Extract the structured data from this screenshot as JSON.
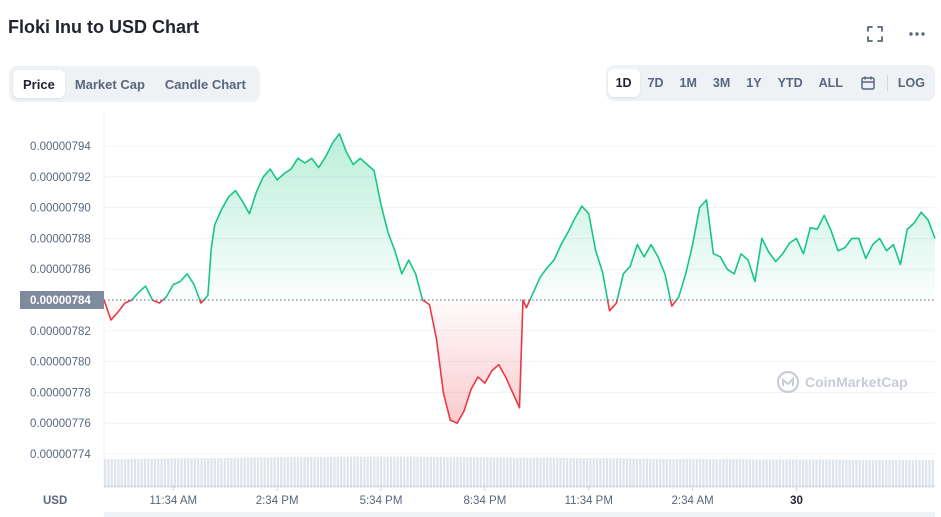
{
  "header": {
    "title": "Floki Inu to USD Chart"
  },
  "icons": {
    "fullscreen": "fullscreen-icon",
    "more": "more-icon",
    "calendar": "calendar-icon"
  },
  "tabs": [
    {
      "label": "Price",
      "active": true
    },
    {
      "label": "Market Cap",
      "active": false
    },
    {
      "label": "Candle Chart",
      "active": false
    }
  ],
  "ranges": [
    {
      "label": "1D",
      "active": true
    },
    {
      "label": "7D",
      "active": false
    },
    {
      "label": "1M",
      "active": false
    },
    {
      "label": "3M",
      "active": false
    },
    {
      "label": "1Y",
      "active": false
    },
    {
      "label": "YTD",
      "active": false
    },
    {
      "label": "ALL",
      "active": false
    }
  ],
  "scale_toggle": "LOG",
  "watermark": "CoinMarketCap",
  "colors": {
    "up": "#16c784",
    "down": "#ea3943",
    "accent": "#3861fb"
  },
  "chart_data": {
    "type": "line",
    "currency_label": "USD",
    "reference_value": 7.84e-06,
    "reference_label": "0.00000784",
    "ylim": [
      7.72e-06,
      7.96e-06
    ],
    "y_ticks": [
      7.74e-06,
      7.76e-06,
      7.78e-06,
      7.8e-06,
      7.82e-06,
      7.84e-06,
      7.86e-06,
      7.88e-06,
      7.9e-06,
      7.92e-06,
      7.94e-06
    ],
    "y_tick_labels": [
      "0.00000774",
      "0.00000776",
      "0.00000778",
      "0.00000780",
      "0.00000782",
      "0.00000784",
      "0.00000786",
      "0.00000788",
      "0.00000790",
      "0.00000792",
      "0.00000794"
    ],
    "x_range_hours": [
      0,
      24
    ],
    "x_ticks": [
      {
        "label": "11:34 AM",
        "h": 2.0,
        "bold": false
      },
      {
        "label": "2:34 PM",
        "h": 5.0,
        "bold": false
      },
      {
        "label": "5:34 PM",
        "h": 8.0,
        "bold": false
      },
      {
        "label": "8:34 PM",
        "h": 11.0,
        "bold": false
      },
      {
        "label": "11:34 PM",
        "h": 14.0,
        "bold": false
      },
      {
        "label": "2:34 AM",
        "h": 17.0,
        "bold": false
      },
      {
        "label": "30",
        "h": 20.0,
        "bold": true
      }
    ],
    "grid": true,
    "price_series": [
      [
        0.0,
        7.84
      ],
      [
        0.2,
        7.827
      ],
      [
        0.4,
        7.832
      ],
      [
        0.6,
        7.838
      ],
      [
        0.8,
        7.84
      ],
      [
        1.0,
        7.845
      ],
      [
        1.2,
        7.849
      ],
      [
        1.4,
        7.84
      ],
      [
        1.6,
        7.838
      ],
      [
        1.8,
        7.842
      ],
      [
        2.0,
        7.85
      ],
      [
        2.2,
        7.852
      ],
      [
        2.4,
        7.857
      ],
      [
        2.6,
        7.85
      ],
      [
        2.8,
        7.838
      ],
      [
        3.0,
        7.843
      ],
      [
        3.1,
        7.874
      ],
      [
        3.2,
        7.889
      ],
      [
        3.4,
        7.899
      ],
      [
        3.6,
        7.907
      ],
      [
        3.8,
        7.911
      ],
      [
        4.0,
        7.904
      ],
      [
        4.2,
        7.896
      ],
      [
        4.4,
        7.91
      ],
      [
        4.6,
        7.92
      ],
      [
        4.8,
        7.925
      ],
      [
        5.0,
        7.918
      ],
      [
        5.2,
        7.922
      ],
      [
        5.4,
        7.925
      ],
      [
        5.6,
        7.932
      ],
      [
        5.8,
        7.929
      ],
      [
        6.0,
        7.932
      ],
      [
        6.2,
        7.926
      ],
      [
        6.4,
        7.933
      ],
      [
        6.6,
        7.942
      ],
      [
        6.8,
        7.948
      ],
      [
        7.0,
        7.936
      ],
      [
        7.2,
        7.928
      ],
      [
        7.4,
        7.932
      ],
      [
        7.6,
        7.928
      ],
      [
        7.8,
        7.924
      ],
      [
        8.0,
        7.902
      ],
      [
        8.2,
        7.884
      ],
      [
        8.4,
        7.872
      ],
      [
        8.6,
        7.857
      ],
      [
        8.8,
        7.866
      ],
      [
        9.0,
        7.857
      ],
      [
        9.2,
        7.84
      ],
      [
        9.4,
        7.837
      ],
      [
        9.6,
        7.815
      ],
      [
        9.8,
        7.78
      ],
      [
        10.0,
        7.762
      ],
      [
        10.2,
        7.76
      ],
      [
        10.4,
        7.768
      ],
      [
        10.6,
        7.782
      ],
      [
        10.8,
        7.79
      ],
      [
        11.0,
        7.786
      ],
      [
        11.2,
        7.794
      ],
      [
        11.4,
        7.798
      ],
      [
        11.6,
        7.79
      ],
      [
        11.8,
        7.78
      ],
      [
        12.0,
        7.77
      ],
      [
        12.1,
        7.84
      ],
      [
        12.2,
        7.835
      ],
      [
        12.4,
        7.845
      ],
      [
        12.6,
        7.855
      ],
      [
        12.8,
        7.861
      ],
      [
        13.0,
        7.866
      ],
      [
        13.2,
        7.876
      ],
      [
        13.4,
        7.884
      ],
      [
        13.6,
        7.893
      ],
      [
        13.8,
        7.901
      ],
      [
        14.0,
        7.896
      ],
      [
        14.2,
        7.872
      ],
      [
        14.4,
        7.858
      ],
      [
        14.6,
        7.833
      ],
      [
        14.8,
        7.838
      ],
      [
        15.0,
        7.857
      ],
      [
        15.2,
        7.862
      ],
      [
        15.4,
        7.876
      ],
      [
        15.6,
        7.868
      ],
      [
        15.8,
        7.876
      ],
      [
        16.0,
        7.868
      ],
      [
        16.2,
        7.857
      ],
      [
        16.4,
        7.836
      ],
      [
        16.6,
        7.842
      ],
      [
        16.8,
        7.857
      ],
      [
        17.0,
        7.876
      ],
      [
        17.2,
        7.9
      ],
      [
        17.4,
        7.905
      ],
      [
        17.6,
        7.87
      ],
      [
        17.8,
        7.868
      ],
      [
        18.0,
        7.86
      ],
      [
        18.2,
        7.857
      ],
      [
        18.4,
        7.87
      ],
      [
        18.6,
        7.866
      ],
      [
        18.8,
        7.852
      ],
      [
        19.0,
        7.88
      ],
      [
        19.2,
        7.871
      ],
      [
        19.4,
        7.865
      ],
      [
        19.6,
        7.87
      ],
      [
        19.8,
        7.877
      ],
      [
        20.0,
        7.88
      ],
      [
        20.2,
        7.87
      ],
      [
        20.4,
        7.887
      ],
      [
        20.6,
        7.886
      ],
      [
        20.8,
        7.895
      ],
      [
        21.0,
        7.885
      ],
      [
        21.2,
        7.872
      ],
      [
        21.4,
        7.874
      ],
      [
        21.6,
        7.88
      ],
      [
        21.8,
        7.88
      ],
      [
        22.0,
        7.867
      ],
      [
        22.2,
        7.876
      ],
      [
        22.4,
        7.88
      ],
      [
        22.6,
        7.872
      ],
      [
        22.8,
        7.876
      ],
      [
        23.0,
        7.863
      ],
      [
        23.2,
        7.886
      ],
      [
        23.4,
        7.89
      ],
      [
        23.6,
        7.897
      ],
      [
        23.8,
        7.892
      ],
      [
        24.0,
        7.88
      ]
    ],
    "volume_series": [
      0.52,
      0.52,
      0.53,
      0.53,
      0.54,
      0.55,
      0.55,
      0.56,
      0.56,
      0.56,
      0.55,
      0.55,
      0.54,
      0.54,
      0.53,
      0.53,
      0.52,
      0.52,
      0.52,
      0.51,
      0.51,
      0.51,
      0.5,
      0.5,
      0.5
    ]
  }
}
